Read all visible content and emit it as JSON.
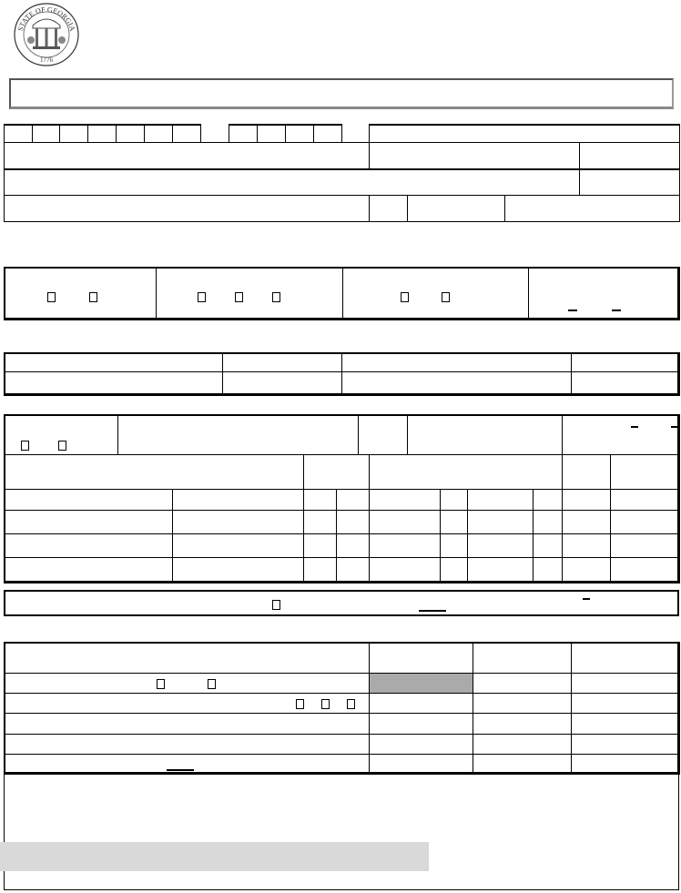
{
  "seal": {
    "top_text": "STATE OF GEORGIA",
    "year": "1776"
  },
  "colors": {
    "shaded_cell": "#aaaaaa",
    "shaded_band": "#d9d9d9",
    "line": "#000000"
  }
}
